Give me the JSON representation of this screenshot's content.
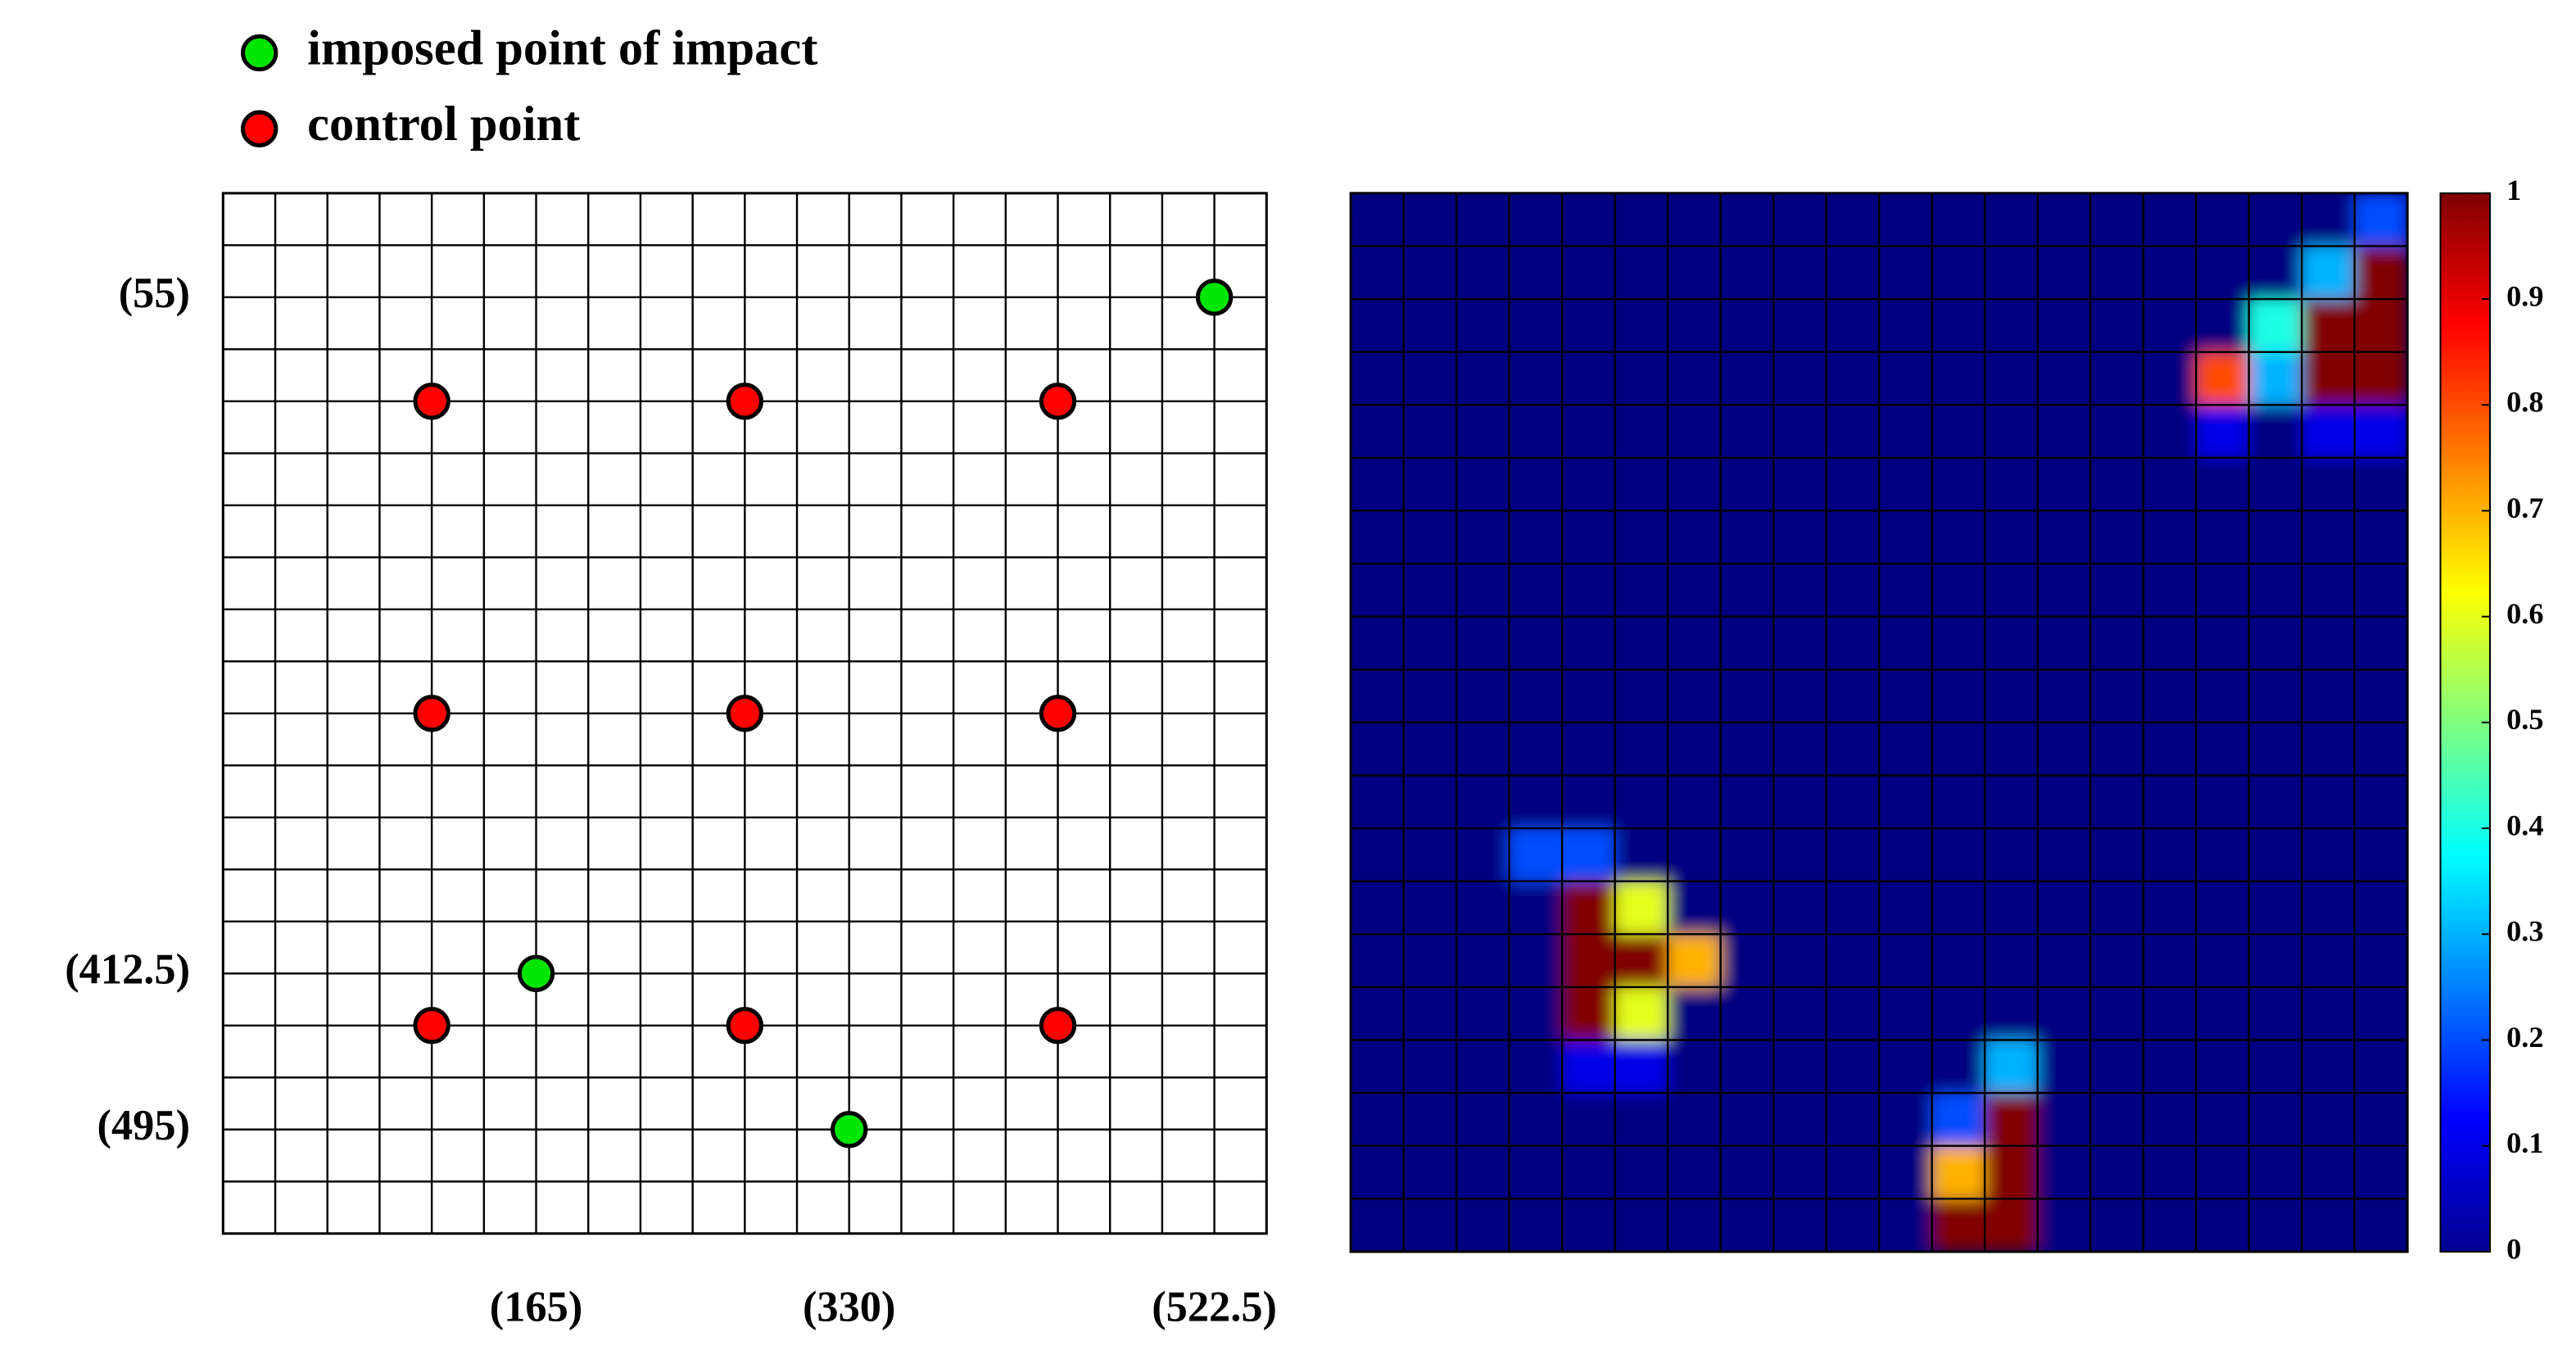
{
  "chart_data": [
    {
      "type": "scatter",
      "xlim": [
        0,
        550
      ],
      "ylim": [
        0,
        550
      ],
      "y_inverted": true,
      "grid": true,
      "xticks": [
        {
          "value": 165,
          "label": "(165)"
        },
        {
          "value": 330,
          "label": "(330)"
        },
        {
          "value": 522.5,
          "label": "(522.5)"
        }
      ],
      "yticks": [
        {
          "value": 55,
          "label": "(55)"
        },
        {
          "value": 412.5,
          "label": "(412.5)"
        },
        {
          "value": 495,
          "label": "(495)"
        }
      ],
      "series": [
        {
          "name": "imposed point of impact",
          "color": "#00e600",
          "x": [
            522.5,
            165,
            330
          ],
          "y": [
            55,
            412.5,
            495
          ]
        },
        {
          "name": "control point",
          "color": "#ff0000",
          "x": [
            110,
            275,
            440,
            110,
            275,
            440,
            110,
            275,
            440
          ],
          "y": [
            110,
            110,
            110,
            275,
            275,
            275,
            440,
            440,
            440
          ]
        }
      ]
    },
    {
      "type": "heatmap",
      "colormap": "jet",
      "zlim": [
        0,
        1
      ],
      "colorbar_ticks": [
        0,
        0.1,
        0.2,
        0.3,
        0.4,
        0.5,
        0.6,
        0.7,
        0.8,
        0.9,
        1
      ],
      "values": [
        [
          0,
          0,
          0,
          0,
          0,
          0,
          0,
          0,
          0,
          0,
          0,
          0,
          0,
          0,
          0,
          0,
          0,
          0,
          0,
          0.2
        ],
        [
          0,
          0,
          0,
          0,
          0,
          0,
          0,
          0,
          0,
          0,
          0,
          0,
          0,
          0,
          0,
          0,
          0,
          0,
          0.3,
          1
        ],
        [
          0,
          0,
          0,
          0,
          0,
          0,
          0,
          0,
          0,
          0,
          0,
          0,
          0,
          0,
          0,
          0,
          0,
          0.4,
          1,
          1
        ],
        [
          0,
          0,
          0,
          0,
          0,
          0,
          0,
          0,
          0,
          0,
          0,
          0,
          0,
          0,
          0,
          0,
          0.8,
          0.3,
          1,
          1
        ],
        [
          0,
          0,
          0,
          0,
          0,
          0,
          0,
          0,
          0,
          0,
          0,
          0,
          0,
          0,
          0,
          0,
          0.1,
          0,
          0.1,
          0.1
        ],
        [
          0,
          0,
          0,
          0,
          0,
          0,
          0,
          0,
          0,
          0,
          0,
          0,
          0,
          0,
          0,
          0,
          0,
          0,
          0,
          0
        ],
        [
          0,
          0,
          0,
          0,
          0,
          0,
          0,
          0,
          0,
          0,
          0,
          0,
          0,
          0,
          0,
          0,
          0,
          0,
          0,
          0
        ],
        [
          0,
          0,
          0,
          0,
          0,
          0,
          0,
          0,
          0,
          0,
          0,
          0,
          0,
          0,
          0,
          0,
          0,
          0,
          0,
          0
        ],
        [
          0,
          0,
          0,
          0,
          0,
          0,
          0,
          0,
          0,
          0,
          0,
          0,
          0,
          0,
          0,
          0,
          0,
          0,
          0,
          0
        ],
        [
          0,
          0,
          0,
          0,
          0,
          0,
          0,
          0,
          0,
          0,
          0,
          0,
          0,
          0,
          0,
          0,
          0,
          0,
          0,
          0
        ],
        [
          0,
          0,
          0,
          0,
          0,
          0,
          0,
          0,
          0,
          0,
          0,
          0,
          0,
          0,
          0,
          0,
          0,
          0,
          0,
          0
        ],
        [
          0,
          0,
          0,
          0,
          0,
          0,
          0,
          0,
          0,
          0,
          0,
          0,
          0,
          0,
          0,
          0,
          0,
          0,
          0,
          0
        ],
        [
          0,
          0,
          0,
          0.2,
          0.2,
          0,
          0,
          0,
          0,
          0,
          0,
          0,
          0,
          0,
          0,
          0,
          0,
          0,
          0,
          0
        ],
        [
          0,
          0,
          0,
          0,
          1,
          0.6,
          0,
          0,
          0,
          0,
          0,
          0,
          0,
          0,
          0,
          0,
          0,
          0,
          0,
          0
        ],
        [
          0,
          0,
          0,
          0,
          1,
          1,
          0.7,
          0,
          0,
          0,
          0,
          0,
          0,
          0,
          0,
          0,
          0,
          0,
          0,
          0
        ],
        [
          0,
          0,
          0,
          0,
          1,
          0.6,
          0,
          0,
          0,
          0,
          0,
          0,
          0,
          0,
          0,
          0,
          0,
          0,
          0,
          0
        ],
        [
          0,
          0,
          0,
          0,
          0.1,
          0.1,
          0,
          0,
          0,
          0,
          0,
          0,
          0.3,
          0,
          0,
          0,
          0,
          0,
          0,
          0
        ],
        [
          0,
          0,
          0,
          0,
          0,
          0,
          0,
          0,
          0,
          0,
          0,
          0.2,
          1,
          0,
          0,
          0,
          0,
          0,
          0,
          0
        ],
        [
          0,
          0,
          0,
          0,
          0,
          0,
          0,
          0,
          0,
          0,
          0,
          0.7,
          1,
          0,
          0,
          0,
          0,
          0,
          0,
          0
        ],
        [
          0,
          0,
          0,
          0,
          0,
          0,
          0,
          0,
          0,
          0,
          0,
          1,
          1,
          0,
          0,
          0,
          0,
          0,
          0,
          0
        ]
      ]
    }
  ]
}
